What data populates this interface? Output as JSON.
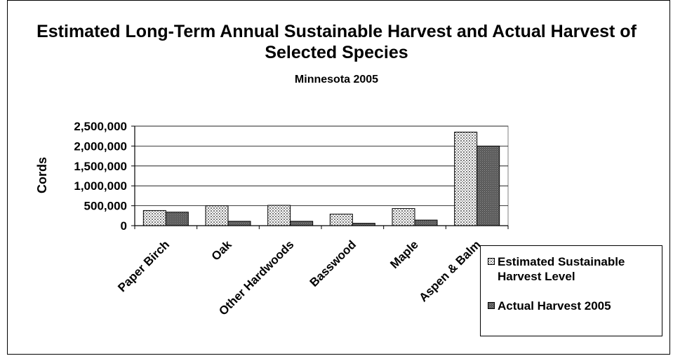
{
  "chart_data": {
    "type": "bar",
    "title": "Estimated Long-Term Annual Sustainable Harvest and Actual Harvest of Selected Species",
    "subtitle": "Minnesota 2005",
    "xlabel": "",
    "ylabel": "Cords",
    "ylim": [
      0,
      2500000
    ],
    "yticks": [
      0,
      500000,
      1000000,
      1500000,
      2000000,
      2500000
    ],
    "ytick_labels": [
      "0",
      "500,000",
      "1,000,000",
      "1,500,000",
      "2,000,000",
      "2,500,000"
    ],
    "categories": [
      "Paper Birch",
      "Oak",
      "Other Hardwoods",
      "Basswood",
      "Maple",
      "Aspen & Balm"
    ],
    "series": [
      {
        "name": "Estimated Sustainable Harvest Level",
        "values": [
          380000,
          500000,
          510000,
          290000,
          430000,
          2350000
        ],
        "color": "#d9d9d9",
        "pattern": "dots"
      },
      {
        "name": "Actual Harvest 2005",
        "values": [
          340000,
          110000,
          110000,
          60000,
          140000,
          2000000
        ],
        "color": "#707070",
        "pattern": "dense"
      }
    ],
    "grid": true,
    "legend": "bottom-right"
  }
}
